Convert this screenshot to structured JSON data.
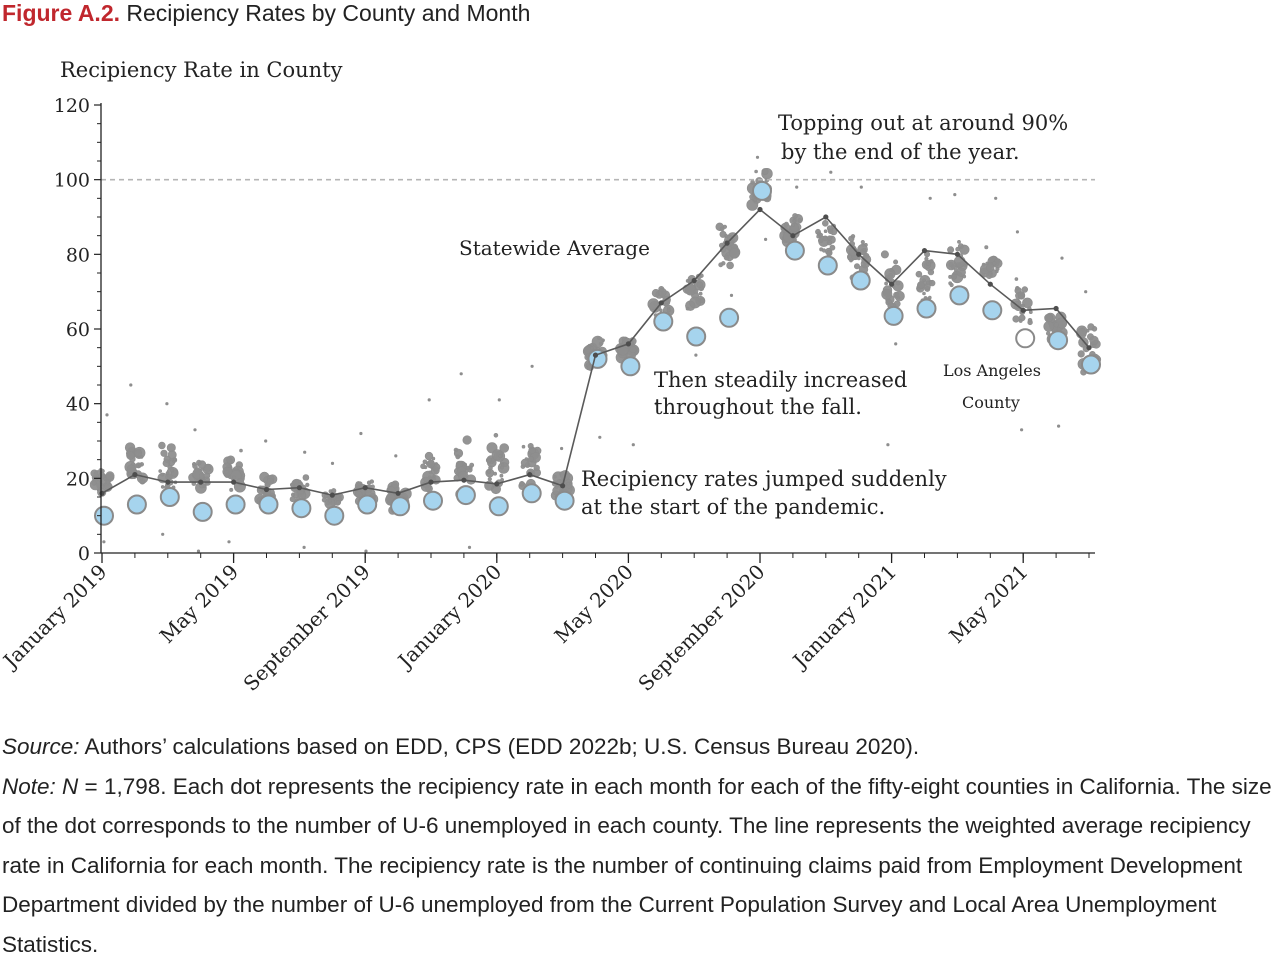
{
  "figure": {
    "label": "Figure A.2.",
    "title": "Recipiency Rates by County and Month"
  },
  "chart_data": {
    "type": "scatter",
    "ylabel": "Recipiency Rate in County",
    "xlabel": "",
    "ylim": [
      0,
      120
    ],
    "yticks": [
      0,
      20,
      40,
      60,
      80,
      100,
      120
    ],
    "reference_line": 100,
    "months": [
      "2019-01",
      "2019-02",
      "2019-03",
      "2019-04",
      "2019-05",
      "2019-06",
      "2019-07",
      "2019-08",
      "2019-09",
      "2019-10",
      "2019-11",
      "2019-12",
      "2020-01",
      "2020-02",
      "2020-03",
      "2020-04",
      "2020-05",
      "2020-06",
      "2020-07",
      "2020-08",
      "2020-09",
      "2020-10",
      "2020-11",
      "2020-12",
      "2021-01",
      "2021-02",
      "2021-03",
      "2021-04",
      "2021-05",
      "2021-06",
      "2021-07"
    ],
    "x_tick_labels": [
      {
        "month_index": 0,
        "label": "January 2019"
      },
      {
        "month_index": 4,
        "label": "May 2019"
      },
      {
        "month_index": 8,
        "label": "September 2019"
      },
      {
        "month_index": 12,
        "label": "January 2020"
      },
      {
        "month_index": 16,
        "label": "May 2020"
      },
      {
        "month_index": 20,
        "label": "September 2020"
      },
      {
        "month_index": 24,
        "label": "January 2021"
      },
      {
        "month_index": 28,
        "label": "May 2021"
      }
    ],
    "series": [
      {
        "name": "Statewide Average",
        "values": [
          16,
          21,
          19,
          19,
          19,
          17,
          17.5,
          15.5,
          17.5,
          16,
          19,
          19.5,
          18.5,
          21,
          18,
          53,
          56,
          67,
          73,
          83,
          92,
          85,
          90,
          80,
          72,
          81,
          80,
          72,
          65,
          65.5,
          55
        ]
      }
    ],
    "los_angeles_county": [
      10,
      13,
      15,
      11,
      13,
      13,
      12,
      10,
      13,
      12.5,
      14,
      15.5,
      12.5,
      16,
      14,
      52,
      50,
      62,
      58,
      63,
      97,
      81,
      77,
      73,
      63.5,
      65.5,
      69,
      65,
      57.5,
      57,
      50.5
    ],
    "county_spread": [
      {
        "low": 12,
        "high": 26,
        "outliers": [
          3,
          37
        ]
      },
      {
        "low": 15,
        "high": 33,
        "outliers": [
          45
        ]
      },
      {
        "low": 14,
        "high": 32,
        "outliers": [
          40,
          5
        ]
      },
      {
        "low": 14,
        "high": 28,
        "outliers": [
          33,
          0.5
        ]
      },
      {
        "low": 14,
        "high": 28,
        "outliers": [
          3
        ]
      },
      {
        "low": 12,
        "high": 23,
        "outliers": [
          30
        ]
      },
      {
        "low": 13,
        "high": 21,
        "outliers": [
          27,
          1.5
        ]
      },
      {
        "low": 10,
        "high": 19,
        "outliers": [
          24
        ]
      },
      {
        "low": 12,
        "high": 21,
        "outliers": [
          32,
          0.5
        ]
      },
      {
        "low": 11,
        "high": 20,
        "outliers": [
          26
        ]
      },
      {
        "low": 13,
        "high": 29,
        "outliers": [
          41
        ]
      },
      {
        "low": 13,
        "high": 32,
        "outliers": [
          48,
          1.5
        ]
      },
      {
        "low": 12,
        "high": 34,
        "outliers": [
          41
        ]
      },
      {
        "low": 14,
        "high": 35,
        "outliers": [
          50
        ]
      },
      {
        "low": 12,
        "high": 24,
        "outliers": [
          28
        ]
      },
      {
        "low": 48,
        "high": 60,
        "outliers": [
          31
        ]
      },
      {
        "low": 50,
        "high": 59,
        "outliers": [
          29
        ]
      },
      {
        "low": 58,
        "high": 73,
        "outliers": [
          40
        ]
      },
      {
        "low": 62,
        "high": 77,
        "outliers": [
          53
        ]
      },
      {
        "low": 72,
        "high": 92,
        "outliers": [
          69
        ]
      },
      {
        "low": 90,
        "high": 104,
        "outliers": [
          106,
          84
        ]
      },
      {
        "low": 80,
        "high": 94,
        "outliers": [
          98
        ]
      },
      {
        "low": 76,
        "high": 91,
        "outliers": [
          102
        ]
      },
      {
        "low": 70,
        "high": 90,
        "outliers": [
          98
        ]
      },
      {
        "low": 62,
        "high": 83,
        "outliers": [
          56,
          29
        ]
      },
      {
        "low": 62,
        "high": 83,
        "outliers": [
          95
        ]
      },
      {
        "low": 66,
        "high": 86,
        "outliers": [
          96
        ]
      },
      {
        "low": 70,
        "high": 83,
        "outliers": [
          95
        ]
      },
      {
        "low": 58,
        "high": 75,
        "outliers": [
          86,
          33
        ]
      },
      {
        "low": 55,
        "high": 68,
        "outliers": [
          79,
          34
        ]
      },
      {
        "low": 46,
        "high": 63,
        "outliers": [
          70
        ]
      }
    ],
    "annotations": {
      "peak_line1": "Topping out at around 90%",
      "peak_line2": "by the end of the year.",
      "statewide": "Statewide Average",
      "fall_line1": "Then steadily increased",
      "fall_line2": "throughout the fall.",
      "la_line1": "Los Angeles",
      "la_line2": "County",
      "jump_line1": "Recipiency rates jumped suddenly",
      "jump_line2": "at the start of the pandemic."
    }
  },
  "source": {
    "label": "Source:",
    "text": " Authors’ calculations based on EDD, CPS (EDD 2022b; U.S. Census Bureau 2020)."
  },
  "note": {
    "label": "Note:",
    "n_symbol": "N",
    "text": " = 1,798. Each dot represents the recipiency rate in each month for each of the fifty-eight coun­ties in California. The size of the dot corresponds to the number of U-6 unemployed in each county. The line represents the weighted average recipiency rate in California for each month. The recipiency rate is the number of continuing claims paid from Employment Development Department divided by the num­ber of U-6 unemployed from the Current Population Survey and Local Area Unemployment Statistics."
  }
}
